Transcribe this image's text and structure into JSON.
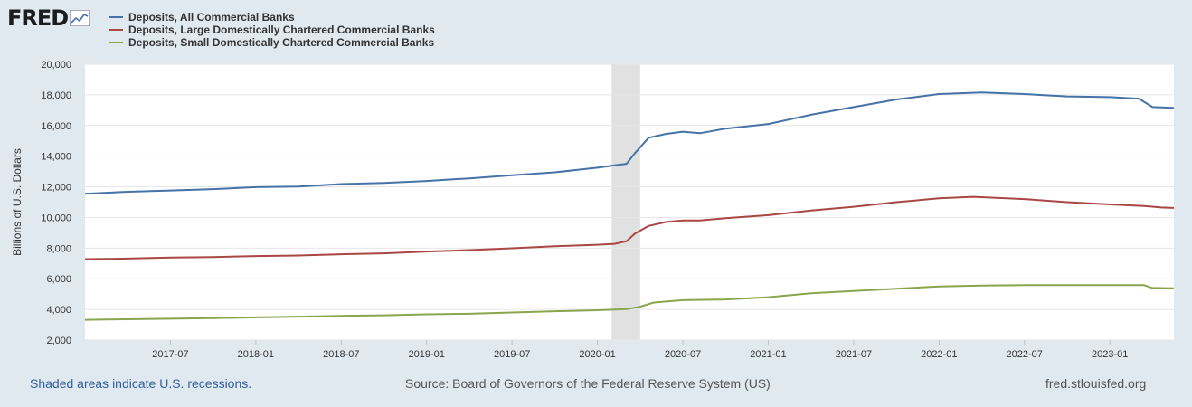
{
  "logo": {
    "text": "FRED",
    "icon": "line-chart-icon"
  },
  "chart_data": {
    "type": "line",
    "ylabel": "Billions of U.S. Dollars",
    "xlabel": "",
    "ylim": [
      2000,
      20000
    ],
    "yticks": [
      "2,000",
      "4,000",
      "6,000",
      "8,000",
      "10,000",
      "12,000",
      "14,000",
      "16,000",
      "18,000",
      "20,000"
    ],
    "ytick_values": [
      2000,
      4000,
      6000,
      8000,
      10000,
      12000,
      14000,
      16000,
      18000,
      20000
    ],
    "xlim": [
      2017.0,
      2023.375
    ],
    "xticks": [
      {
        "label": "2017-07",
        "value": 2017.5
      },
      {
        "label": "2018-01",
        "value": 2018.0
      },
      {
        "label": "2018-07",
        "value": 2018.5
      },
      {
        "label": "2019-01",
        "value": 2019.0
      },
      {
        "label": "2019-07",
        "value": 2019.5
      },
      {
        "label": "2020-01",
        "value": 2020.0
      },
      {
        "label": "2020-07",
        "value": 2020.5
      },
      {
        "label": "2021-01",
        "value": 2021.0
      },
      {
        "label": "2021-07",
        "value": 2021.5
      },
      {
        "label": "2022-01",
        "value": 2022.0
      },
      {
        "label": "2022-07",
        "value": 2022.5
      },
      {
        "label": "2023-01",
        "value": 2023.0
      }
    ],
    "recession": {
      "start": 2020.083,
      "end": 2020.25
    },
    "series": [
      {
        "name": "Deposits, All Commercial Banks",
        "color": "#4572a7",
        "points": [
          [
            2017.0,
            11550
          ],
          [
            2017.25,
            11680
          ],
          [
            2017.5,
            11760
          ],
          [
            2017.75,
            11850
          ],
          [
            2018.0,
            11980
          ],
          [
            2018.25,
            12020
          ],
          [
            2018.5,
            12180
          ],
          [
            2018.75,
            12250
          ],
          [
            2019.0,
            12380
          ],
          [
            2019.25,
            12550
          ],
          [
            2019.5,
            12750
          ],
          [
            2019.75,
            12950
          ],
          [
            2020.0,
            13250
          ],
          [
            2020.1,
            13400
          ],
          [
            2020.17,
            13500
          ],
          [
            2020.22,
            14200
          ],
          [
            2020.3,
            15200
          ],
          [
            2020.4,
            15450
          ],
          [
            2020.5,
            15600
          ],
          [
            2020.6,
            15500
          ],
          [
            2020.75,
            15800
          ],
          [
            2021.0,
            16100
          ],
          [
            2021.25,
            16700
          ],
          [
            2021.5,
            17200
          ],
          [
            2021.75,
            17700
          ],
          [
            2022.0,
            18050
          ],
          [
            2022.25,
            18150
          ],
          [
            2022.5,
            18050
          ],
          [
            2022.75,
            17900
          ],
          [
            2023.0,
            17850
          ],
          [
            2023.17,
            17750
          ],
          [
            2023.25,
            17200
          ],
          [
            2023.375,
            17150
          ]
        ]
      },
      {
        "name": "Deposits, Large Domestically Chartered Commercial Banks",
        "color": "#aa4643",
        "points": [
          [
            2017.0,
            7280
          ],
          [
            2017.25,
            7320
          ],
          [
            2017.5,
            7380
          ],
          [
            2017.75,
            7420
          ],
          [
            2018.0,
            7480
          ],
          [
            2018.25,
            7520
          ],
          [
            2018.5,
            7600
          ],
          [
            2018.75,
            7660
          ],
          [
            2019.0,
            7780
          ],
          [
            2019.25,
            7870
          ],
          [
            2019.5,
            7990
          ],
          [
            2019.75,
            8120
          ],
          [
            2020.0,
            8220
          ],
          [
            2020.1,
            8280
          ],
          [
            2020.17,
            8450
          ],
          [
            2020.22,
            8950
          ],
          [
            2020.3,
            9450
          ],
          [
            2020.4,
            9700
          ],
          [
            2020.5,
            9800
          ],
          [
            2020.6,
            9800
          ],
          [
            2020.75,
            9950
          ],
          [
            2021.0,
            10150
          ],
          [
            2021.25,
            10450
          ],
          [
            2021.5,
            10700
          ],
          [
            2021.75,
            11000
          ],
          [
            2022.0,
            11250
          ],
          [
            2022.2,
            11350
          ],
          [
            2022.5,
            11200
          ],
          [
            2022.75,
            11000
          ],
          [
            2023.0,
            10850
          ],
          [
            2023.2,
            10750
          ],
          [
            2023.3,
            10650
          ],
          [
            2023.375,
            10620
          ]
        ]
      },
      {
        "name": "Deposits, Small Domestically Chartered Commercial Banks",
        "color": "#89a54e",
        "points": [
          [
            2017.0,
            3320
          ],
          [
            2017.25,
            3360
          ],
          [
            2017.5,
            3390
          ],
          [
            2017.75,
            3430
          ],
          [
            2018.0,
            3480
          ],
          [
            2018.25,
            3530
          ],
          [
            2018.5,
            3580
          ],
          [
            2018.75,
            3620
          ],
          [
            2019.0,
            3680
          ],
          [
            2019.25,
            3720
          ],
          [
            2019.5,
            3800
          ],
          [
            2019.75,
            3880
          ],
          [
            2020.0,
            3950
          ],
          [
            2020.17,
            4020
          ],
          [
            2020.25,
            4180
          ],
          [
            2020.33,
            4450
          ],
          [
            2020.5,
            4600
          ],
          [
            2020.75,
            4650
          ],
          [
            2021.0,
            4800
          ],
          [
            2021.25,
            5050
          ],
          [
            2021.5,
            5200
          ],
          [
            2021.75,
            5350
          ],
          [
            2022.0,
            5500
          ],
          [
            2022.25,
            5550
          ],
          [
            2022.5,
            5580
          ],
          [
            2022.75,
            5580
          ],
          [
            2023.0,
            5580
          ],
          [
            2023.2,
            5580
          ],
          [
            2023.25,
            5400
          ],
          [
            2023.375,
            5380
          ]
        ]
      }
    ]
  },
  "footer": {
    "note": "Shaded areas indicate U.S. recessions.",
    "source": "Source: Board of Governors of the Federal Reserve System (US)",
    "site": "fred.stlouisfed.org"
  }
}
